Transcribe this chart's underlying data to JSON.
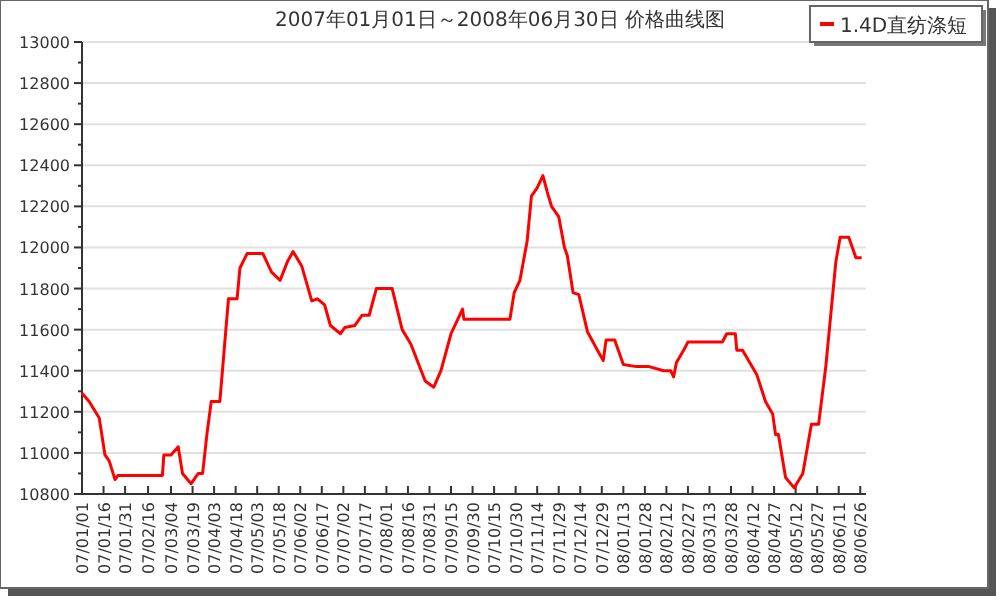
{
  "chart_data": {
    "type": "line",
    "title": "2007年01月01日～2008年06月30日 价格曲线图",
    "legend": "top right",
    "grid": "y",
    "xlim": [
      "2007-01-01",
      "2008-06-30"
    ],
    "xticks": [
      {
        "value": "2007-01-01",
        "label": "07/01/01"
      },
      {
        "value": "2007-01-16",
        "label": "07/01/16"
      },
      {
        "value": "2007-01-31",
        "label": "07/01/31"
      },
      {
        "value": "2007-02-16",
        "label": "07/02/16"
      },
      {
        "value": "2007-03-04",
        "label": "07/03/04"
      },
      {
        "value": "2007-03-19",
        "label": "07/03/19"
      },
      {
        "value": "2007-04-03",
        "label": "07/04/03"
      },
      {
        "value": "2007-04-18",
        "label": "07/04/18"
      },
      {
        "value": "2007-05-03",
        "label": "07/05/03"
      },
      {
        "value": "2007-05-18",
        "label": "07/05/18"
      },
      {
        "value": "2007-06-02",
        "label": "07/06/02"
      },
      {
        "value": "2007-06-17",
        "label": "07/06/17"
      },
      {
        "value": "2007-07-02",
        "label": "07/07/02"
      },
      {
        "value": "2007-07-17",
        "label": "07/07/17"
      },
      {
        "value": "2007-08-01",
        "label": "07/08/01"
      },
      {
        "value": "2007-08-16",
        "label": "07/08/16"
      },
      {
        "value": "2007-08-31",
        "label": "07/08/31"
      },
      {
        "value": "2007-09-15",
        "label": "07/09/15"
      },
      {
        "value": "2007-09-30",
        "label": "07/09/30"
      },
      {
        "value": "2007-10-15",
        "label": "07/10/15"
      },
      {
        "value": "2007-10-30",
        "label": "07/10/30"
      },
      {
        "value": "2007-11-14",
        "label": "07/11/14"
      },
      {
        "value": "2007-11-29",
        "label": "07/11/29"
      },
      {
        "value": "2007-12-14",
        "label": "07/12/14"
      },
      {
        "value": "2007-12-29",
        "label": "07/12/29"
      },
      {
        "value": "2008-01-13",
        "label": "08/01/13"
      },
      {
        "value": "2008-01-28",
        "label": "08/01/28"
      },
      {
        "value": "2008-02-12",
        "label": "08/02/12"
      },
      {
        "value": "2008-02-27",
        "label": "08/02/27"
      },
      {
        "value": "2008-03-13",
        "label": "08/03/13"
      },
      {
        "value": "2008-03-28",
        "label": "08/03/28"
      },
      {
        "value": "2008-04-12",
        "label": "08/04/12"
      },
      {
        "value": "2008-04-27",
        "label": "08/04/27"
      },
      {
        "value": "2008-05-12",
        "label": "08/05/12"
      },
      {
        "value": "2008-05-27",
        "label": "08/05/27"
      },
      {
        "value": "2008-06-11",
        "label": "08/06/11"
      },
      {
        "value": "2008-06-26",
        "label": "08/06/26"
      }
    ],
    "ylim": [
      10800,
      13000
    ],
    "yticks": [
      10800,
      11000,
      11200,
      11400,
      11600,
      11800,
      12000,
      12200,
      12400,
      12600,
      12800,
      13000
    ],
    "series": [
      {
        "name": "1.4D直纺涤短",
        "color": "#ff0000",
        "x": [
          "2007-01-01",
          "2007-01-06",
          "2007-01-13",
          "2007-01-17",
          "2007-01-20",
          "2007-01-24",
          "2007-01-26",
          "2007-02-26",
          "2007-02-27",
          "2007-03-04",
          "2007-03-09",
          "2007-03-12",
          "2007-03-18",
          "2007-03-23",
          "2007-03-26",
          "2007-03-29",
          "2007-04-01",
          "2007-04-07",
          "2007-04-13",
          "2007-04-19",
          "2007-04-21",
          "2007-04-26",
          "2007-05-07",
          "2007-05-13",
          "2007-05-19",
          "2007-05-24",
          "2007-05-28",
          "2007-06-03",
          "2007-06-10",
          "2007-06-14",
          "2007-06-19",
          "2007-06-23",
          "2007-06-30",
          "2007-07-03",
          "2007-07-10",
          "2007-07-15",
          "2007-07-20",
          "2007-07-25",
          "2007-08-05",
          "2007-08-12",
          "2007-08-18",
          "2007-08-28",
          "2007-09-03",
          "2007-09-08",
          "2007-09-15",
          "2007-09-21",
          "2007-09-23",
          "2007-09-24",
          "2007-10-26",
          "2007-10-29",
          "2007-11-02",
          "2007-11-07",
          "2007-11-10",
          "2007-11-14",
          "2007-11-18",
          "2007-11-21",
          "2007-11-24",
          "2007-11-29",
          "2007-12-03",
          "2007-12-05",
          "2007-12-09",
          "2007-12-13",
          "2007-12-19",
          "2007-12-26",
          "2007-12-30",
          "2008-01-01",
          "2008-01-07",
          "2008-01-13",
          "2008-01-22",
          "2008-01-31",
          "2008-02-10",
          "2008-02-15",
          "2008-02-17",
          "2008-02-19",
          "2008-02-24",
          "2008-02-27",
          "2008-03-22",
          "2008-03-25",
          "2008-03-31",
          "2008-04-01",
          "2008-04-05",
          "2008-04-15",
          "2008-04-21",
          "2008-04-26",
          "2008-04-28",
          "2008-04-30",
          "2008-05-05",
          "2008-05-11",
          "2008-05-17",
          "2008-05-23",
          "2008-05-28",
          "2008-06-02",
          "2008-06-09",
          "2008-06-12",
          "2008-06-18",
          "2008-06-23",
          "2008-06-27"
        ],
        "values": [
          11290,
          11250,
          11170,
          10990,
          10960,
          10870,
          10890,
          10890,
          10990,
          10990,
          11030,
          10900,
          10850,
          10900,
          10900,
          11090,
          11250,
          11250,
          11750,
          11750,
          11900,
          11970,
          11970,
          11880,
          11840,
          11930,
          11980,
          11910,
          11740,
          11750,
          11720,
          11620,
          11580,
          11610,
          11620,
          11670,
          11670,
          11800,
          11800,
          11600,
          11530,
          11350,
          11320,
          11400,
          11580,
          11670,
          11700,
          11650,
          11650,
          11780,
          11840,
          12030,
          12250,
          12290,
          12350,
          12270,
          12200,
          12150,
          12000,
          11960,
          11780,
          11770,
          11590,
          11500,
          11450,
          11550,
          11550,
          11430,
          11420,
          11420,
          11400,
          11400,
          11370,
          11440,
          11500,
          11540,
          11540,
          11580,
          11580,
          11500,
          11500,
          11380,
          11250,
          11190,
          11090,
          11090,
          10880,
          10830,
          10900,
          11140,
          11140,
          11420,
          11930,
          12050,
          12050,
          11950,
          11950
        ]
      }
    ]
  }
}
